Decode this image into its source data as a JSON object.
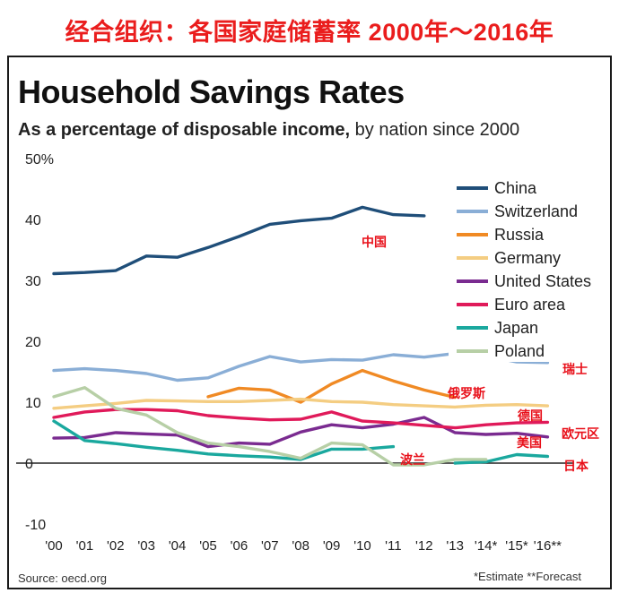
{
  "banner": {
    "text": "经合组织：各国家庭储蓄率 2000年～2016年"
  },
  "header": {
    "title": "Household Savings Rates",
    "subtitle_bold": "As a percentage of disposable income,",
    "subtitle_rest": " by nation since 2000"
  },
  "footer": {
    "source": "Source: oecd.org",
    "footnote": "*Estimate  **Forecast"
  },
  "chart_data": {
    "type": "line",
    "title": "Household Savings Rates",
    "subtitle": "As a percentage of disposable income, by nation since 2000",
    "x": [
      "'00",
      "'01",
      "'02",
      "'03",
      "'04",
      "'05",
      "'06",
      "'07",
      "'08",
      "'09",
      "'10",
      "'11",
      "'12",
      "'13",
      "'14*",
      "'15*",
      "'16**"
    ],
    "y_ticks": [
      "50%",
      "40",
      "30",
      "20",
      "10",
      "0",
      "-10"
    ],
    "ylim": [
      -10,
      50
    ],
    "grid": false,
    "legend_position": "top-right",
    "series": [
      {
        "name": "China",
        "color": "#1f4e79",
        "values": [
          31.1,
          31.3,
          31.6,
          34.0,
          33.8,
          35.4,
          37.2,
          39.2,
          39.8,
          40.2,
          42.0,
          40.8,
          40.6,
          null,
          null,
          null,
          null
        ]
      },
      {
        "name": "Switzerland",
        "color": "#8aaed6",
        "values": [
          15.2,
          15.5,
          15.2,
          14.7,
          13.6,
          14.0,
          15.9,
          17.5,
          16.6,
          17.0,
          16.9,
          17.8,
          17.4,
          18.0,
          17.6,
          16.6,
          16.5
        ]
      },
      {
        "name": "Russia",
        "color": "#f08a24",
        "values": [
          null,
          null,
          null,
          null,
          null,
          10.9,
          12.3,
          12.0,
          10.0,
          13.0,
          15.2,
          13.5,
          12.0,
          10.8,
          null,
          null,
          null
        ]
      },
      {
        "name": "Germany",
        "color": "#f4cd82",
        "values": [
          9.0,
          9.4,
          9.8,
          10.3,
          10.2,
          10.1,
          10.1,
          10.3,
          10.5,
          10.1,
          10.0,
          9.6,
          9.4,
          9.2,
          9.5,
          9.6,
          9.4
        ]
      },
      {
        "name": "United States",
        "color": "#7a2b90",
        "values": [
          4.1,
          4.2,
          5.0,
          4.8,
          4.6,
          2.7,
          3.3,
          3.1,
          5.1,
          6.3,
          5.8,
          6.4,
          7.5,
          5.0,
          4.7,
          4.9,
          4.3
        ]
      },
      {
        "name": "Euro area",
        "color": "#e01a5a",
        "values": [
          7.5,
          8.4,
          8.8,
          8.8,
          8.6,
          7.8,
          7.4,
          7.1,
          7.2,
          8.4,
          6.9,
          6.6,
          6.2,
          5.8,
          6.3,
          6.6,
          6.7
        ]
      },
      {
        "name": "Japan",
        "color": "#1aa89e",
        "values": [
          6.9,
          3.7,
          3.2,
          2.6,
          2.1,
          1.5,
          1.2,
          1.0,
          0.6,
          2.3,
          2.3,
          2.7,
          null,
          0.0,
          0.2,
          1.4,
          1.1
        ]
      },
      {
        "name": "Poland",
        "color": "#b7cfa6",
        "values": [
          10.9,
          12.4,
          9.0,
          7.9,
          5.0,
          3.3,
          2.7,
          1.9,
          0.8,
          3.3,
          3.0,
          -0.3,
          -0.3,
          0.6,
          0.6,
          null,
          null
        ]
      }
    ],
    "annotations": [
      {
        "text": "中国",
        "series": "China"
      },
      {
        "text": "瑞士",
        "series": "Switzerland"
      },
      {
        "text": "俄罗斯",
        "series": "Russia"
      },
      {
        "text": "德国",
        "series": "Germany"
      },
      {
        "text": "欧元区",
        "series": "Euro area"
      },
      {
        "text": "美国",
        "series": "United States"
      },
      {
        "text": "波兰",
        "series": "Poland"
      },
      {
        "text": "日本",
        "series": "Japan"
      }
    ]
  }
}
